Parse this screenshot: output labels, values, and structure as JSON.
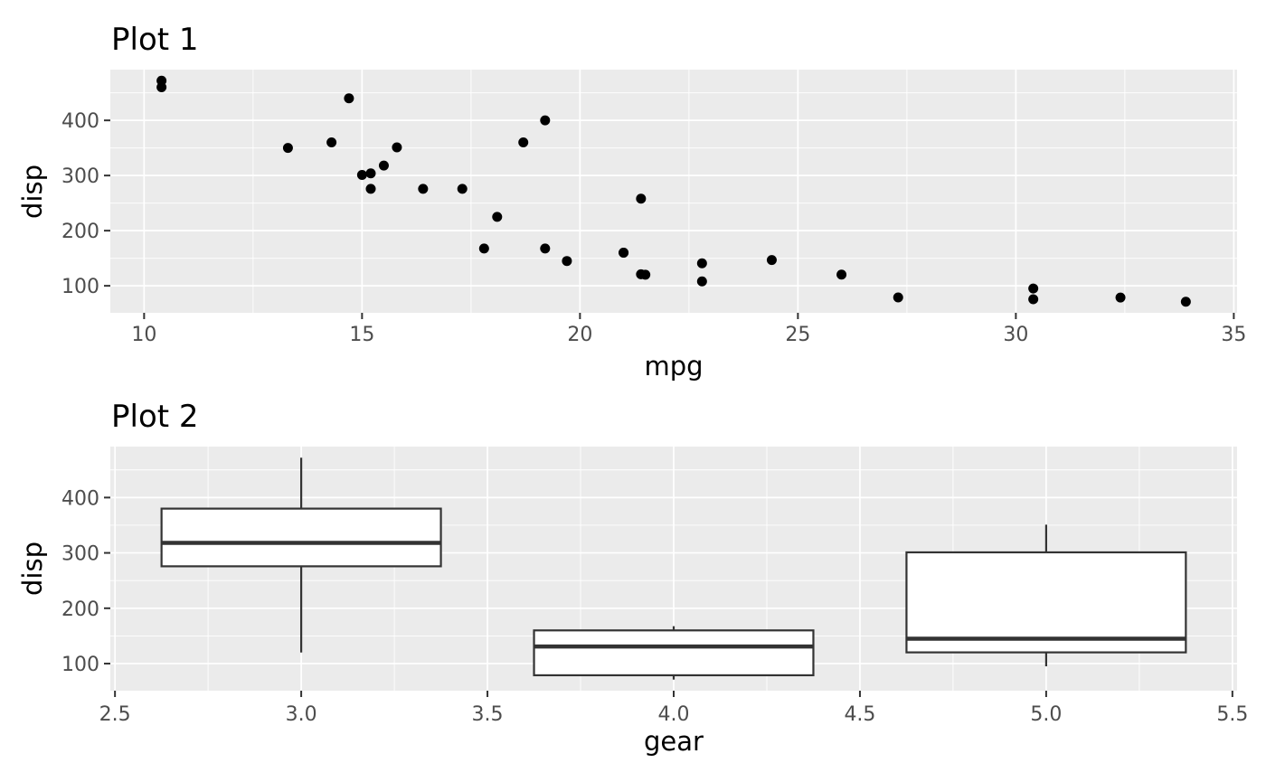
{
  "page": {
    "background": "#FFFFFF"
  },
  "theme": {
    "panel_bg": "#EBEBEB",
    "grid_color": "#FFFFFF",
    "tick_color": "#333333",
    "tick_label_color": "#4D4D4D",
    "title_color": "#000000",
    "axis_title_color": "#000000",
    "point_color": "#000000",
    "box_stroke": "#333333",
    "box_fill": "#FFFFFF"
  },
  "chart_data": [
    {
      "type": "scatter",
      "title": "Plot 1",
      "xlabel": "mpg",
      "ylabel": "disp",
      "grid": true,
      "legend": "none",
      "xlim": [
        9.225,
        35.075
      ],
      "ylim": [
        51.055,
        492.045
      ],
      "x_ticks": [
        10,
        15,
        20,
        25,
        30,
        35
      ],
      "x_tick_labels": [
        "10",
        "15",
        "20",
        "25",
        "30",
        "35"
      ],
      "y_ticks": [
        100,
        200,
        300,
        400
      ],
      "y_tick_labels": [
        "100",
        "200",
        "300",
        "400"
      ],
      "x_minor": [
        12.5,
        17.5,
        22.5,
        27.5,
        32.5
      ],
      "y_minor": [
        150,
        250,
        350,
        450
      ],
      "points": [
        [
          21.0,
          160.0
        ],
        [
          21.0,
          160.0
        ],
        [
          22.8,
          108.0
        ],
        [
          21.4,
          258.0
        ],
        [
          18.7,
          360.0
        ],
        [
          18.1,
          225.0
        ],
        [
          14.3,
          360.0
        ],
        [
          24.4,
          146.7
        ],
        [
          22.8,
          140.8
        ],
        [
          19.2,
          167.6
        ],
        [
          17.8,
          167.6
        ],
        [
          16.4,
          275.8
        ],
        [
          17.3,
          275.8
        ],
        [
          15.2,
          275.8
        ],
        [
          10.4,
          472.0
        ],
        [
          10.4,
          460.0
        ],
        [
          14.7,
          440.0
        ],
        [
          32.4,
          78.7
        ],
        [
          30.4,
          75.7
        ],
        [
          33.9,
          71.1
        ],
        [
          21.5,
          120.1
        ],
        [
          15.5,
          318.0
        ],
        [
          15.2,
          304.0
        ],
        [
          13.3,
          350.0
        ],
        [
          19.2,
          400.0
        ],
        [
          27.3,
          79.0
        ],
        [
          26.0,
          120.3
        ],
        [
          30.4,
          95.1
        ],
        [
          15.8,
          351.0
        ],
        [
          19.7,
          145.0
        ],
        [
          15.0,
          301.0
        ],
        [
          21.4,
          121.0
        ]
      ]
    },
    {
      "type": "boxplot",
      "title": "Plot 2",
      "xlabel": "gear",
      "ylabel": "disp",
      "grid": true,
      "legend": "none",
      "xlim": [
        2.4875,
        5.5125
      ],
      "ylim": [
        51.055,
        492.045
      ],
      "x_ticks": [
        2.5,
        3.0,
        3.5,
        4.0,
        4.5,
        5.0,
        5.5
      ],
      "x_tick_labels": [
        "2.5",
        "3.0",
        "3.5",
        "4.0",
        "4.5",
        "5.0",
        "5.5"
      ],
      "y_ticks": [
        100,
        200,
        300,
        400
      ],
      "y_tick_labels": [
        "100",
        "200",
        "300",
        "400"
      ],
      "x_minor": [
        2.75,
        3.25,
        3.75,
        4.25,
        4.75,
        5.25
      ],
      "y_minor": [
        150,
        250,
        350,
        450
      ],
      "box_width": 0.75,
      "boxes": [
        {
          "x": 3,
          "whisker_low": 120.1,
          "lower": 275.8,
          "median": 318.0,
          "upper": 380.0,
          "whisker_high": 472.0
        },
        {
          "x": 4,
          "whisker_low": 71.1,
          "lower": 78.925,
          "median": 130.9,
          "upper": 160.0,
          "whisker_high": 167.6
        },
        {
          "x": 5,
          "whisker_low": 95.1,
          "lower": 120.3,
          "median": 145.0,
          "upper": 301.0,
          "whisker_high": 351.0
        }
      ]
    }
  ]
}
